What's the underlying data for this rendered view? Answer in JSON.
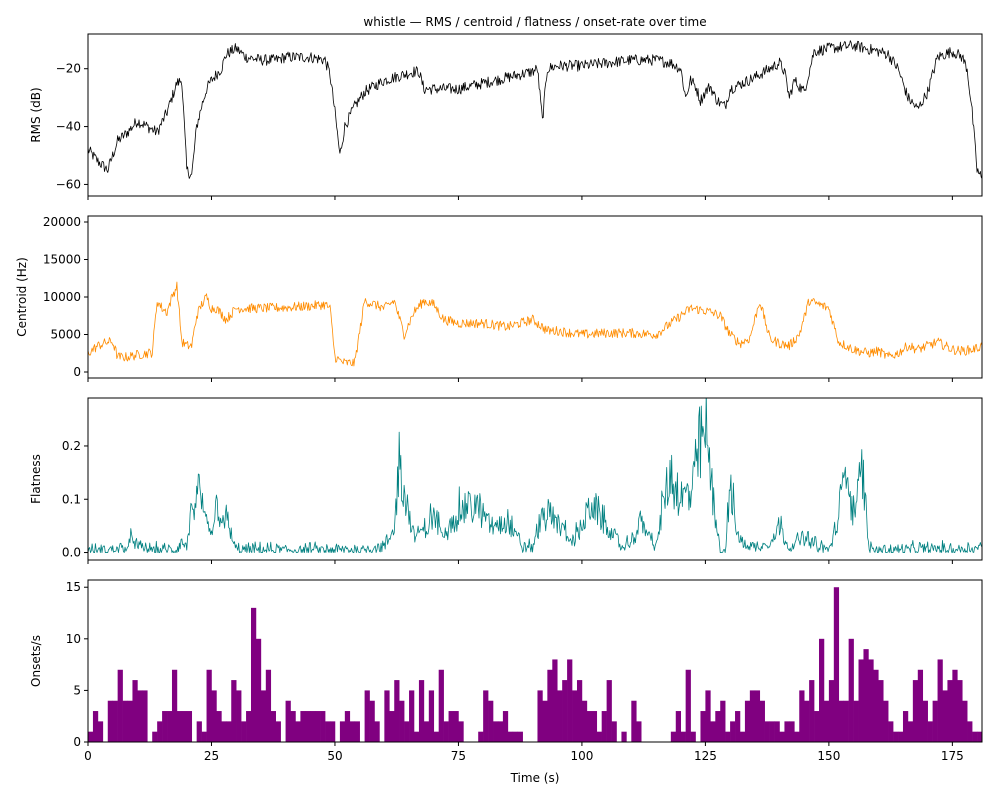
{
  "chart_data": {
    "title": "whistle — RMS / centroid / flatness / onset-rate over time",
    "xlabel": "Time (s)",
    "xlim": [
      0,
      181
    ],
    "xticks": [
      0,
      25,
      50,
      75,
      100,
      125,
      150,
      175
    ],
    "panels": [
      {
        "type": "line",
        "ylabel": "RMS (dB)",
        "color": "#000000",
        "ylim": [
          -64,
          -8
        ],
        "yticks": [
          -60,
          -40,
          -20
        ],
        "x": [
          0,
          2,
          4,
          6,
          8,
          10,
          12,
          14,
          16,
          17,
          18,
          19,
          20,
          21,
          22,
          23,
          24,
          25,
          26,
          27,
          28,
          30,
          32,
          35,
          38,
          40,
          45,
          48,
          49,
          50,
          51,
          52,
          54,
          56,
          58,
          60,
          62,
          64,
          66,
          67,
          68,
          70,
          75,
          80,
          85,
          90,
          91,
          92,
          93,
          95,
          100,
          105,
          110,
          115,
          118,
          120,
          121,
          122,
          123,
          124,
          125,
          126,
          127,
          128,
          129,
          130,
          135,
          140,
          141,
          142,
          143,
          145,
          147,
          150,
          155,
          160,
          162,
          164,
          166,
          168,
          170,
          172,
          175,
          177,
          178,
          179,
          180,
          181
        ],
        "y": [
          -48,
          -52,
          -55,
          -45,
          -42,
          -38,
          -40,
          -42,
          -35,
          -30,
          -25,
          -24,
          -55,
          -57,
          -40,
          -33,
          -27,
          -24,
          -22,
          -20,
          -15,
          -13,
          -16,
          -17,
          -17,
          -16,
          -16,
          -17,
          -22,
          -35,
          -50,
          -40,
          -33,
          -28,
          -26,
          -24,
          -23,
          -22,
          -21,
          -21,
          -27,
          -27,
          -27,
          -25,
          -23,
          -21,
          -20,
          -38,
          -20,
          -19,
          -19,
          -18,
          -17,
          -17,
          -18,
          -20,
          -30,
          -24,
          -26,
          -31,
          -28,
          -26,
          -30,
          -32,
          -33,
          -27,
          -23,
          -18,
          -21,
          -30,
          -24,
          -28,
          -14,
          -13,
          -12,
          -14,
          -15,
          -20,
          -30,
          -34,
          -28,
          -16,
          -14,
          -16,
          -20,
          -35,
          -55,
          -58
        ],
        "series_extra": []
      },
      {
        "type": "line",
        "ylabel": "Centroid (Hz)",
        "color": "#ff8c00",
        "ylim": [
          -800,
          20800
        ],
        "yticks": [
          0,
          5000,
          10000,
          15000,
          20000
        ],
        "x": [
          0,
          2,
          4,
          5,
          6,
          8,
          10,
          12,
          13,
          14,
          15,
          16,
          17,
          18,
          19,
          20,
          21,
          22,
          23,
          24,
          25,
          26,
          28,
          30,
          32,
          35,
          40,
          45,
          48,
          49,
          50,
          51,
          52,
          54,
          56,
          58,
          60,
          62,
          64,
          66,
          68,
          70,
          72,
          75,
          80,
          85,
          90,
          93,
          95,
          100,
          105,
          110,
          115,
          120,
          122,
          124,
          126,
          128,
          130,
          132,
          134,
          136,
          138,
          140,
          142,
          144,
          146,
          148,
          150,
          152,
          155,
          158,
          160,
          162,
          164,
          166,
          168,
          170,
          172,
          175,
          177,
          179,
          180,
          181
        ],
        "y": [
          2500,
          3500,
          4000,
          4000,
          2000,
          2000,
          2300,
          2500,
          2600,
          9500,
          8500,
          8000,
          10000,
          11500,
          4000,
          3500,
          3500,
          7500,
          9000,
          10000,
          8500,
          8500,
          7000,
          8500,
          8500,
          8500,
          8600,
          8800,
          9000,
          8500,
          2000,
          1500,
          1200,
          1200,
          9500,
          9000,
          8500,
          9500,
          5000,
          8000,
          9500,
          9000,
          7000,
          6500,
          6500,
          6000,
          7000,
          5500,
          5500,
          5000,
          5200,
          5200,
          5000,
          7500,
          8500,
          8300,
          8000,
          7500,
          5000,
          3800,
          4500,
          9500,
          4500,
          3800,
          3500,
          5000,
          9500,
          9000,
          8500,
          4000,
          3000,
          2500,
          2800,
          2000,
          2500,
          3500,
          3000,
          3500,
          4000,
          3000,
          2800,
          3000,
          3200,
          3500
        ],
        "series_extra": []
      },
      {
        "type": "line",
        "ylabel": "Flatness",
        "color": "#008080",
        "ylim": [
          -0.014,
          0.29
        ],
        "yticks": [
          0.0,
          0.1,
          0.2
        ],
        "x": [
          0,
          4,
          8,
          9,
          10,
          14,
          18,
          19,
          20,
          21,
          22,
          23,
          24,
          25,
          26,
          28,
          30,
          32,
          35,
          40,
          45,
          50,
          52,
          55,
          58,
          60,
          62,
          63,
          64,
          66,
          68,
          70,
          72,
          75,
          78,
          80,
          82,
          85,
          88,
          90,
          92,
          95,
          98,
          100,
          102,
          105,
          108,
          110,
          112,
          115,
          117,
          118,
          120,
          122,
          124,
          125,
          126,
          128,
          129,
          130,
          132,
          135,
          138,
          140,
          142,
          145,
          148,
          150,
          152,
          153,
          155,
          157,
          158,
          160,
          165,
          170,
          175,
          181
        ],
        "y": [
          0.003,
          0.005,
          0.01,
          0.03,
          0.01,
          0.005,
          0.005,
          0.02,
          0.01,
          0.08,
          0.12,
          0.09,
          0.06,
          0.04,
          0.09,
          0.06,
          0.005,
          0.005,
          0.005,
          0.005,
          0.005,
          0.005,
          0.005,
          0.005,
          0.01,
          0.01,
          0.04,
          0.18,
          0.12,
          0.03,
          0.04,
          0.07,
          0.03,
          0.08,
          0.09,
          0.07,
          0.05,
          0.06,
          0.01,
          0.01,
          0.07,
          0.06,
          0.02,
          0.05,
          0.09,
          0.05,
          0.01,
          0.02,
          0.06,
          0.01,
          0.12,
          0.14,
          0.1,
          0.11,
          0.2,
          0.23,
          0.15,
          0.005,
          0.003,
          0.12,
          0.02,
          0.01,
          0.02,
          0.05,
          0.01,
          0.03,
          0.01,
          0.005,
          0.06,
          0.16,
          0.08,
          0.15,
          0.01,
          0.005,
          0.005,
          0.008,
          0.006,
          0.01
        ],
        "series_extra": []
      },
      {
        "type": "bar",
        "ylabel": "Onsets/s",
        "color": "#800080",
        "ylim": [
          0,
          15.7
        ],
        "yticks": [
          0,
          5,
          10,
          15
        ],
        "bin_width": 1,
        "values": [
          1,
          3,
          2,
          0,
          4,
          4,
          7,
          4,
          4,
          6,
          5,
          5,
          0,
          1,
          2,
          3,
          3,
          7,
          3,
          3,
          3,
          0,
          2,
          1,
          7,
          5,
          3,
          2,
          2,
          6,
          5,
          2,
          3,
          13,
          10,
          5,
          7,
          3,
          2,
          0,
          4,
          3,
          2,
          3,
          3,
          3,
          3,
          3,
          2,
          2,
          0,
          2,
          3,
          2,
          2,
          0,
          5,
          4,
          2,
          0,
          5,
          3,
          6,
          4,
          2,
          5,
          1,
          6,
          2,
          5,
          1,
          7,
          2,
          3,
          3,
          2,
          0,
          0,
          0,
          1,
          5,
          4,
          2,
          2,
          3,
          1,
          1,
          1,
          0,
          0,
          0,
          5,
          4,
          7,
          8,
          5,
          6,
          8,
          5,
          6,
          4,
          3,
          3,
          1,
          3,
          6,
          2,
          0,
          1,
          0,
          4,
          2,
          0,
          0,
          0,
          0,
          0,
          0,
          1,
          3,
          1,
          7,
          1,
          0,
          3,
          5,
          2,
          3,
          4,
          1,
          2,
          3,
          1,
          4,
          5,
          5,
          4,
          2,
          2,
          2,
          1,
          2,
          2,
          1,
          5,
          4,
          6,
          3,
          10,
          4,
          6,
          15,
          4,
          4,
          10,
          4,
          8,
          9,
          8,
          7,
          6,
          4,
          2,
          1,
          1,
          3,
          2,
          6,
          7,
          4,
          2,
          4,
          8,
          5,
          6,
          7,
          6,
          4,
          2,
          1,
          1
        ]
      }
    ]
  }
}
